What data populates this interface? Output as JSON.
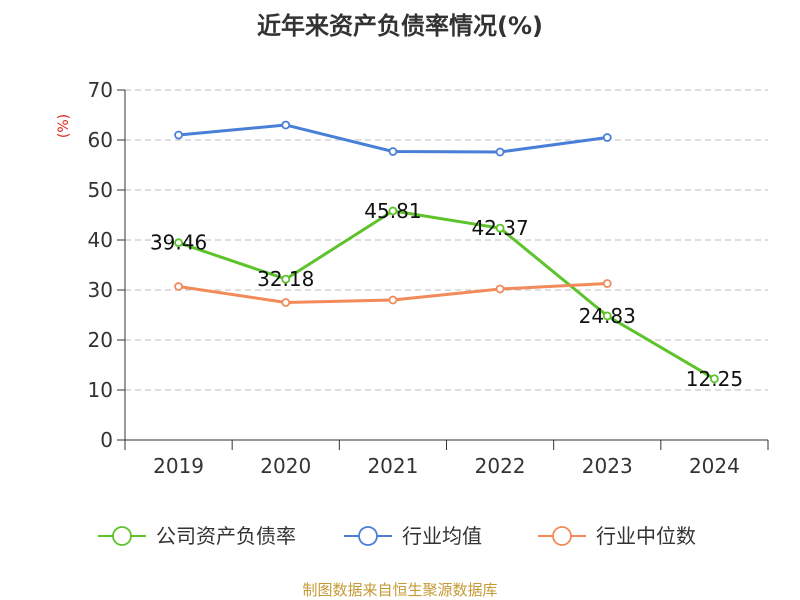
{
  "chart_data": {
    "type": "line",
    "title": "近年来资产负债率情况(%)",
    "ylabel": "(%)",
    "xlabel": "",
    "categories": [
      "2019",
      "2020",
      "2021",
      "2022",
      "2023",
      "2024"
    ],
    "ylim": [
      0,
      70
    ],
    "yticks": [
      0,
      10,
      20,
      30,
      40,
      50,
      60,
      70
    ],
    "grid": true,
    "legend_position": "bottom",
    "series": [
      {
        "name": "公司资产负债率",
        "color": "#5ec32b",
        "values": [
          39.46,
          32.18,
          45.81,
          42.37,
          24.83,
          12.25
        ],
        "labels": [
          "39.46",
          "32.18",
          "45.81",
          "42.37",
          "24.83",
          "12.25"
        ]
      },
      {
        "name": "行业均值",
        "color": "#4a7fd8",
        "values": [
          61.0,
          63.0,
          57.7,
          57.6,
          60.5,
          null
        ]
      },
      {
        "name": "行业中位数",
        "color": "#f28a5a",
        "values": [
          30.7,
          27.5,
          28.0,
          30.2,
          31.3,
          null
        ]
      }
    ]
  },
  "footer": {
    "source": "制图数据来自恒生聚源数据库"
  }
}
